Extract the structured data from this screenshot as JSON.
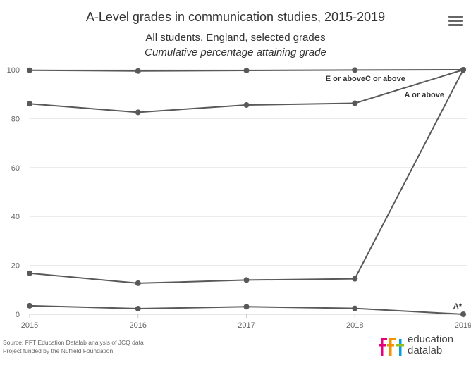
{
  "chart_data": {
    "type": "line",
    "title": "A-Level grades in communication studies, 2015-2019",
    "subtitle": "All students, England, selected grades",
    "subtitle_italic": "Cumulative percentage attaining grade",
    "x": [
      2015,
      2016,
      2017,
      2018,
      2019
    ],
    "x_ticks": [
      "2015",
      "2016",
      "2017",
      "2018",
      "2019"
    ],
    "y_ticks": [
      "0",
      "20",
      "40",
      "60",
      "80",
      "100"
    ],
    "ylim": [
      0,
      100
    ],
    "grid": true,
    "series": [
      {
        "name": "E or above",
        "values": [
          99.8,
          99.5,
          99.7,
          99.9,
          100
        ]
      },
      {
        "name": "C or above",
        "values": [
          86.1,
          82.6,
          85.6,
          86.3,
          100
        ]
      },
      {
        "name": "A or above",
        "values": [
          16.8,
          12.7,
          14.0,
          14.5,
          100
        ]
      },
      {
        "name": "A*",
        "values": [
          3.5,
          2.3,
          3.1,
          2.4,
          0
        ]
      }
    ],
    "line_color": "#595959"
  },
  "source": {
    "line1": "Source: FFT Education Datalab analysis of JCQ data",
    "line2": "Project funded by the Nuffield Foundation"
  },
  "logo": {
    "text_line1": "education",
    "text_line2": "datalab",
    "colors": [
      "#e6007e",
      "#f39200",
      "#009fe3",
      "#95c11f"
    ]
  },
  "menu": {
    "icon": "hamburger-menu-icon"
  }
}
